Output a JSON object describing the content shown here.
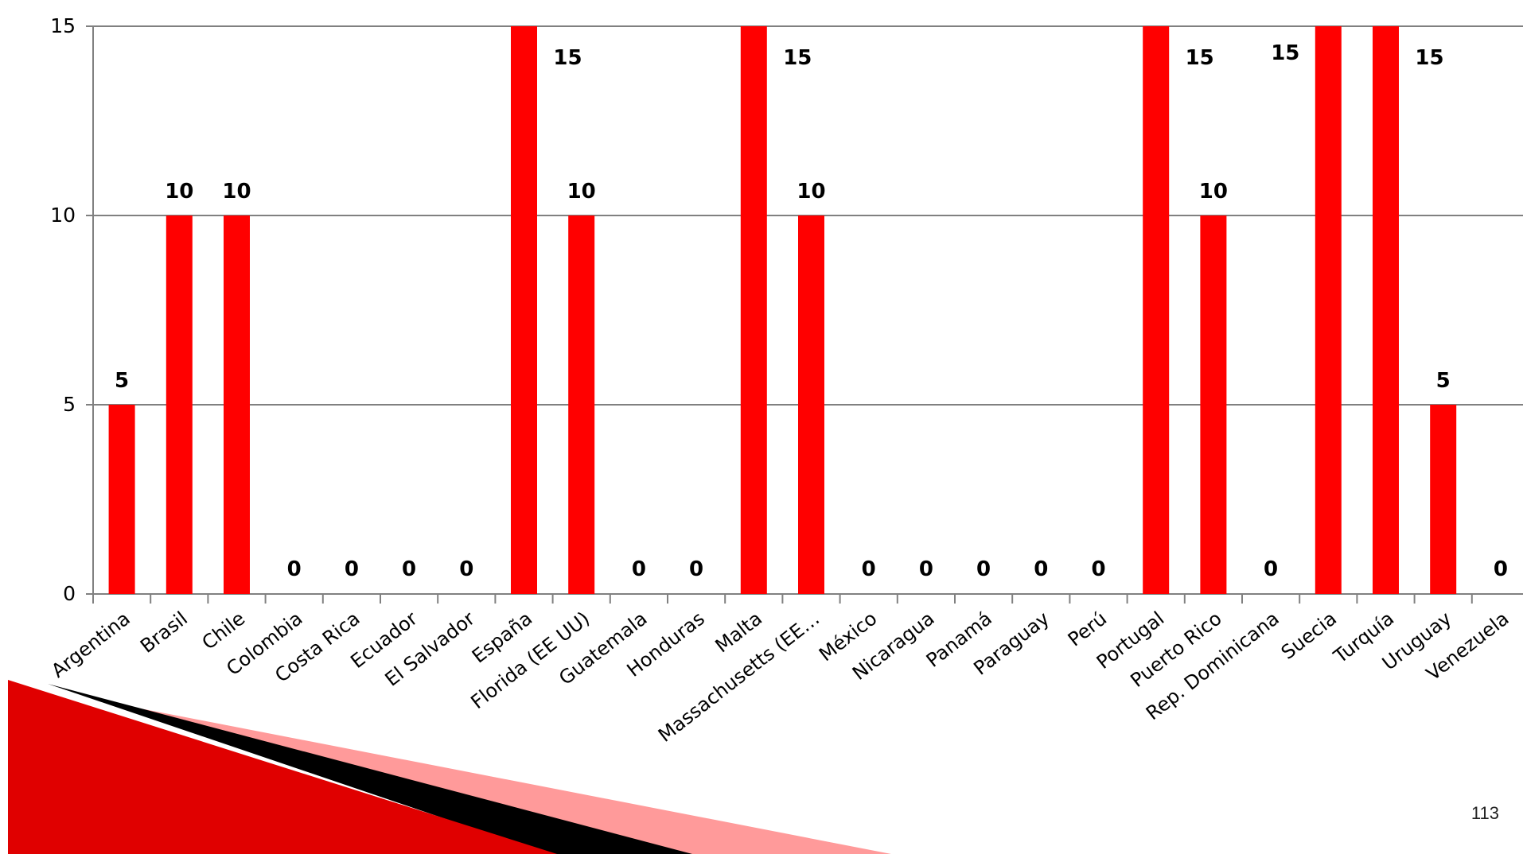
{
  "slide": {
    "page_number": "113"
  },
  "colors": {
    "bar": "#ff0000",
    "grid": "#808080",
    "axis": "#808080",
    "deco_red": "#e00000",
    "deco_black": "#000000",
    "deco_pink": "#ff9a9a"
  },
  "chart_data": {
    "type": "bar",
    "title": "",
    "xlabel": "",
    "ylabel": "",
    "ylim": [
      0,
      15
    ],
    "yticks": [
      0,
      5,
      10,
      15
    ],
    "grid": true,
    "categories": [
      "Argentina",
      "Brasil",
      "Chile",
      "Colombia",
      "Costa Rica",
      "Ecuador",
      "El Salvador",
      "España",
      "Florida (EE UU)",
      "Guatemala",
      "Honduras",
      "Malta",
      "Massachusetts (EE…",
      "México",
      "Nicaragua",
      "Panamá",
      "Paraguay",
      "Perú",
      "Portugal",
      "Puerto Rico",
      "Rep. Dominicana",
      "Suecia",
      "Turquía",
      "Uruguay",
      "Venezuela"
    ],
    "values": [
      5,
      10,
      10,
      0,
      0,
      0,
      0,
      15,
      10,
      0,
      0,
      15,
      10,
      0,
      0,
      0,
      0,
      0,
      15,
      10,
      0,
      15,
      15,
      5,
      0
    ]
  }
}
